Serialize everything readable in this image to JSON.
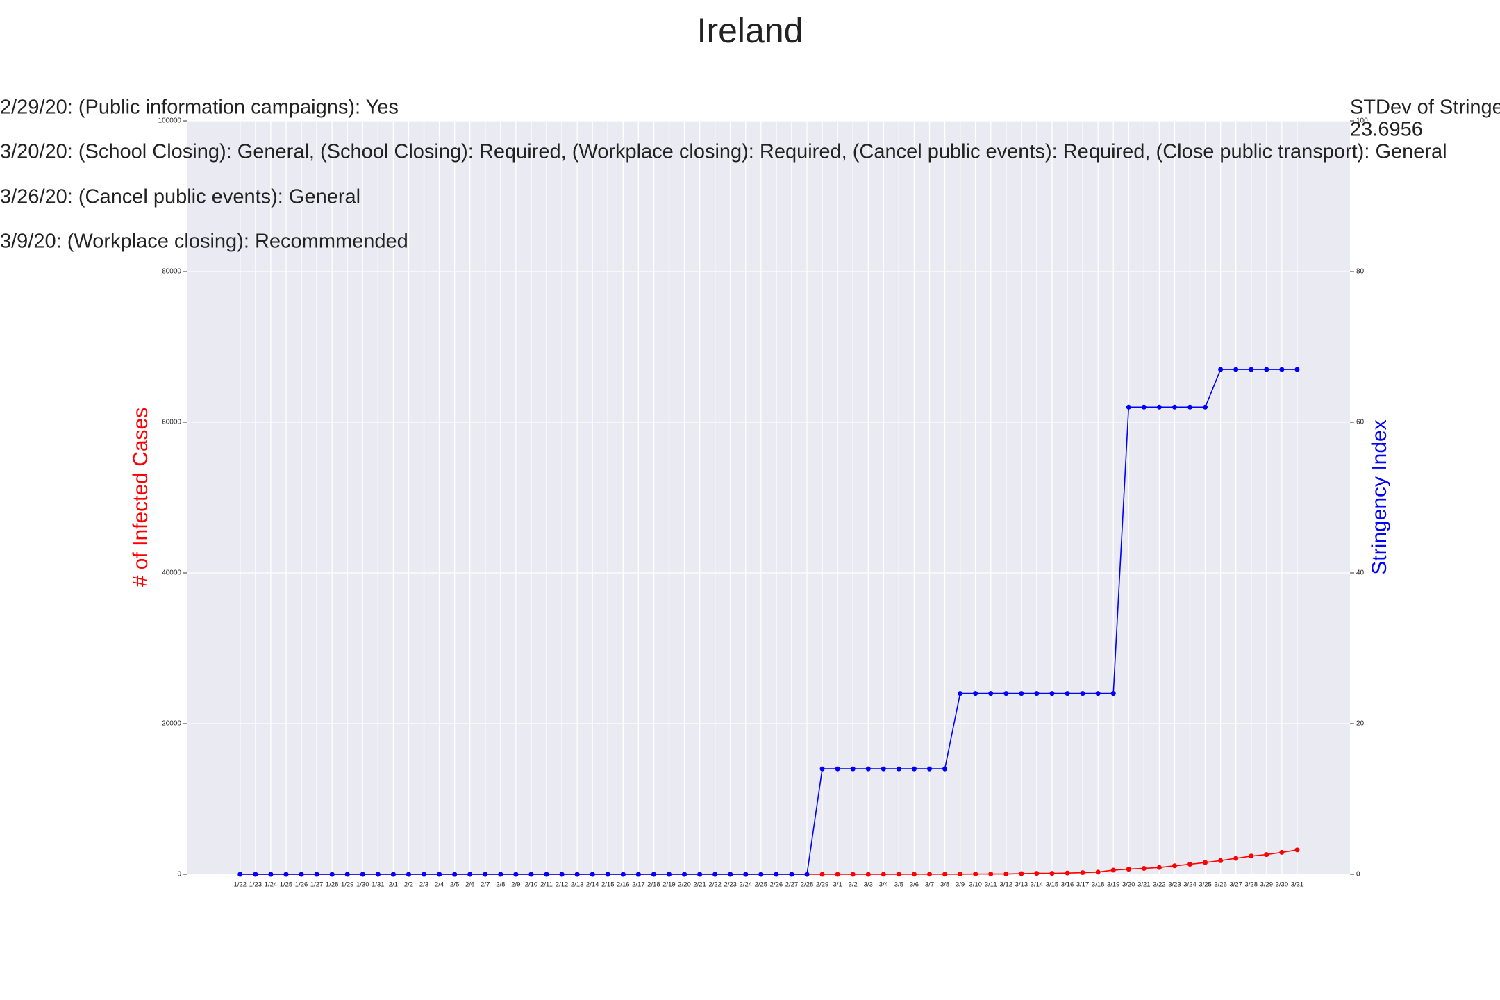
{
  "chart_data": {
    "type": "line",
    "title": "Ireland",
    "annotations": [
      "2/29/20: (Public information campaigns): Yes",
      "3/20/20: (School Closing): General, (School Closing): Required, (Workplace closing): Required, (Cancel public events): Required, (Close public transport): General",
      "3/26/20: (Cancel public events): General",
      "3/9/20: (Workplace closing): Recommmended"
    ],
    "side_note": [
      "STDev of Stringe",
      "23.6956"
    ],
    "ylabel": "# of Infected Cases",
    "ylabel_color": "#ff0000",
    "y2label": "Stringency Index",
    "y2label_color": "#0000ff",
    "categories": [
      "1/22",
      "1/23",
      "1/24",
      "1/25",
      "1/26",
      "1/27",
      "1/28",
      "1/29",
      "1/30",
      "1/31",
      "2/1",
      "2/2",
      "2/3",
      "2/4",
      "2/5",
      "2/6",
      "2/7",
      "2/8",
      "2/9",
      "2/10",
      "2/11",
      "2/12",
      "2/13",
      "2/14",
      "2/15",
      "2/16",
      "2/17",
      "2/18",
      "2/19",
      "2/20",
      "2/21",
      "2/22",
      "2/23",
      "2/24",
      "2/25",
      "2/26",
      "2/27",
      "2/28",
      "2/29",
      "3/1",
      "3/2",
      "3/3",
      "3/4",
      "3/5",
      "3/6",
      "3/7",
      "3/8",
      "3/9",
      "3/10",
      "3/11",
      "3/12",
      "3/13",
      "3/14",
      "3/15",
      "3/16",
      "3/17",
      "3/18",
      "3/19",
      "3/20",
      "3/21",
      "3/22",
      "3/23",
      "3/24",
      "3/25",
      "3/26",
      "3/27",
      "3/28",
      "3/29",
      "3/30",
      "3/31"
    ],
    "series": [
      {
        "color": "#ff0000",
        "values": [
          0,
          0,
          0,
          0,
          0,
          0,
          0,
          0,
          0,
          0,
          0,
          0,
          0,
          0,
          0,
          0,
          0,
          0,
          0,
          0,
          0,
          0,
          0,
          0,
          0,
          0,
          0,
          0,
          0,
          0,
          0,
          0,
          0,
          0,
          0,
          0,
          0,
          0,
          1,
          1,
          1,
          2,
          6,
          6,
          18,
          18,
          19,
          21,
          34,
          43,
          43,
          90,
          129,
          129,
          169,
          223,
          292,
          557,
          683,
          785,
          906,
          1125,
          1329,
          1564,
          1819,
          2121,
          2415,
          2615,
          2910,
          3235
        ]
      },
      {
        "color": "#0000ff",
        "axis": "y2",
        "values": [
          0,
          0,
          0,
          0,
          0,
          0,
          0,
          0,
          0,
          0,
          0,
          0,
          0,
          0,
          0,
          0,
          0,
          0,
          0,
          0,
          0,
          0,
          0,
          0,
          0,
          0,
          0,
          0,
          0,
          0,
          0,
          0,
          0,
          0,
          0,
          0,
          0,
          0,
          14,
          14,
          14,
          14,
          14,
          14,
          14,
          14,
          14,
          24,
          24,
          24,
          24,
          24,
          24,
          24,
          24,
          24,
          24,
          24,
          62,
          62,
          62,
          62,
          62,
          62,
          67,
          67,
          67,
          67,
          67,
          67
        ]
      }
    ],
    "ylim": [
      0,
      100000
    ],
    "yticks": [
      0,
      20000,
      40000,
      60000,
      80000,
      100000
    ],
    "y2lim": [
      0,
      100
    ],
    "y2ticks": [
      0,
      20,
      40,
      60,
      80,
      100
    ],
    "grid": true
  }
}
